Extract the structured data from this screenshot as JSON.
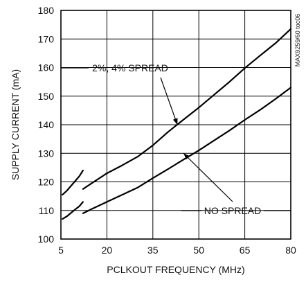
{
  "chart_data": {
    "type": "line",
    "xlabel": "PCLKOUT FREQUENCY (MHz)",
    "ylabel": "SUPPLY CURRENT (mA)",
    "xlim": [
      5,
      80
    ],
    "ylim": [
      100,
      180
    ],
    "x_ticks": [
      5,
      20,
      35,
      50,
      65,
      80
    ],
    "y_ticks": [
      100,
      110,
      120,
      130,
      140,
      150,
      160,
      170,
      180
    ],
    "grid": true,
    "part_note": "MAX9259/60 toc06",
    "series": [
      {
        "name": "2%, 4% SPREAD",
        "segments": [
          [
            [
              5.5,
              115.5
            ],
            [
              7,
              117
            ],
            [
              9,
              119.5
            ],
            [
              11,
              122
            ],
            [
              12.2,
              124
            ]
          ],
          [
            [
              12.2,
              117.5
            ],
            [
              15,
              119.5
            ],
            [
              20,
              123
            ],
            [
              25,
              125.8
            ],
            [
              30,
              128.8
            ],
            [
              35,
              132.8
            ],
            [
              40,
              137.5
            ],
            [
              45,
              141.8
            ],
            [
              50,
              146
            ],
            [
              55,
              150.5
            ],
            [
              60,
              155
            ],
            [
              65,
              159.8
            ],
            [
              70,
              164.2
            ],
            [
              75,
              168.5
            ],
            [
              80,
              173.5
            ]
          ]
        ]
      },
      {
        "name": "NO SPREAD",
        "segments": [
          [
            [
              5.5,
              107
            ],
            [
              7,
              108
            ],
            [
              9,
              109.8
            ],
            [
              11,
              111.5
            ],
            [
              12.2,
              113
            ]
          ],
          [
            [
              12.2,
              109
            ],
            [
              15,
              110.5
            ],
            [
              20,
              113
            ],
            [
              25,
              115.5
            ],
            [
              30,
              118
            ],
            [
              35,
              121.3
            ],
            [
              40,
              124.5
            ],
            [
              45,
              127.8
            ],
            [
              50,
              131
            ],
            [
              55,
              134.5
            ],
            [
              60,
              138
            ],
            [
              65,
              141.7
            ],
            [
              70,
              145.2
            ],
            [
              75,
              149
            ],
            [
              80,
              153
            ]
          ]
        ]
      }
    ],
    "annotations": [
      {
        "text": "2%, 4% SPREAD",
        "target": [
          43,
          140
        ]
      },
      {
        "text": "NO SPREAD",
        "target": [
          45,
          130
        ]
      }
    ]
  }
}
